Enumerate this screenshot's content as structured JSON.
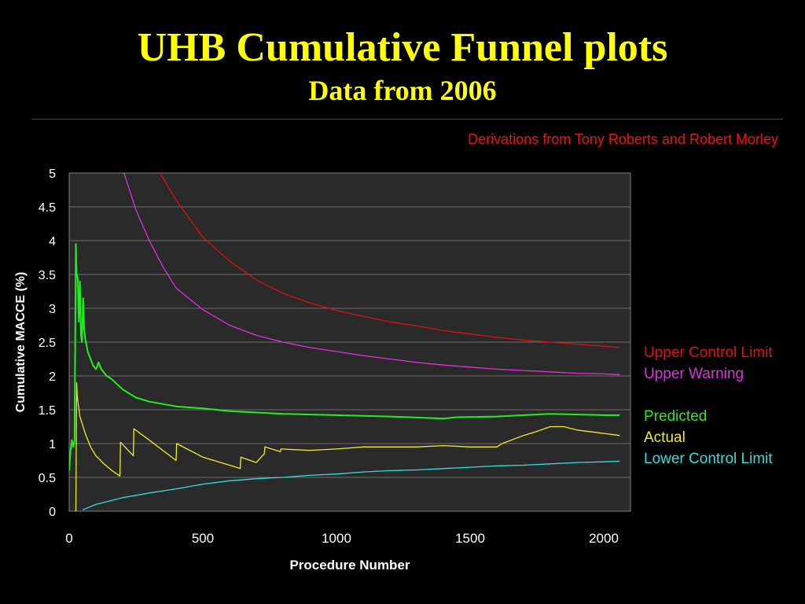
{
  "header": {
    "title": "UHB Cumulative Funnel plots",
    "subtitle": "Data from 2006",
    "credit": "Derivations from Tony Roberts and Robert Morley"
  },
  "colors": {
    "background": "#000000",
    "title": "#ffff00",
    "plot_bg": "#2a2a2a",
    "grid": "#6e6e6e"
  },
  "chart_data": {
    "type": "line",
    "xlabel": "Procedure Number",
    "ylabel": "Cumulative MACCE (%)",
    "xlim": [
      0,
      2100
    ],
    "ylim": [
      0,
      5
    ],
    "x_ticks": [
      0,
      500,
      1000,
      1500,
      2000
    ],
    "y_ticks": [
      0,
      0.5,
      1,
      1.5,
      2,
      2.5,
      3,
      3.5,
      4,
      4.5,
      5
    ],
    "grid": true,
    "legend_position": "right",
    "series": [
      {
        "name": "Upper Control Limit",
        "color": "#dd1111",
        "x": [
          340,
          400,
          500,
          600,
          700,
          800,
          900,
          1000,
          1100,
          1200,
          1300,
          1400,
          1500,
          1600,
          1700,
          1800,
          1900,
          2000,
          2060
        ],
        "y": [
          5.0,
          4.6,
          4.05,
          3.7,
          3.42,
          3.22,
          3.08,
          2.97,
          2.88,
          2.8,
          2.74,
          2.67,
          2.62,
          2.57,
          2.53,
          2.5,
          2.47,
          2.44,
          2.42
        ]
      },
      {
        "name": "Upper Warning",
        "color": "#dd33dd",
        "x": [
          205,
          250,
          300,
          350,
          400,
          500,
          600,
          700,
          800,
          900,
          1000,
          1100,
          1200,
          1300,
          1400,
          1500,
          1600,
          1700,
          1800,
          1900,
          2000,
          2060
        ],
        "y": [
          5.0,
          4.45,
          4.0,
          3.62,
          3.3,
          2.98,
          2.75,
          2.6,
          2.5,
          2.42,
          2.36,
          2.3,
          2.25,
          2.2,
          2.16,
          2.13,
          2.1,
          2.08,
          2.06,
          2.04,
          2.03,
          2.02
        ]
      },
      {
        "name": "Predicted",
        "color": "#22ee22",
        "x": [
          0,
          5,
          10,
          15,
          20,
          25,
          28,
          32,
          36,
          40,
          44,
          48,
          52,
          56,
          60,
          70,
          80,
          90,
          100,
          110,
          120,
          140,
          160,
          200,
          250,
          300,
          400,
          500,
          600,
          800,
          1000,
          1200,
          1400,
          1450,
          1600,
          1700,
          1800,
          2000,
          2060
        ],
        "y": [
          0.6,
          0.9,
          1.05,
          0.95,
          1.05,
          3.95,
          3.5,
          3.45,
          2.8,
          3.4,
          2.6,
          2.5,
          3.15,
          2.7,
          2.55,
          2.35,
          2.25,
          2.15,
          2.1,
          2.2,
          2.1,
          2.0,
          1.95,
          1.8,
          1.68,
          1.62,
          1.55,
          1.52,
          1.48,
          1.44,
          1.42,
          1.4,
          1.37,
          1.39,
          1.4,
          1.42,
          1.44,
          1.42,
          1.42
        ]
      },
      {
        "name": "Actual",
        "color": "#eeee22",
        "x": [
          25,
          28,
          30,
          40,
          60,
          80,
          100,
          130,
          160,
          190,
          192,
          240,
          242,
          300,
          400,
          402,
          500,
          600,
          640,
          642,
          700,
          730,
          732,
          790,
          792,
          900,
          1000,
          1100,
          1200,
          1300,
          1400,
          1500,
          1600,
          1620,
          1700,
          1750,
          1800,
          1850,
          1900,
          2000,
          2060
        ],
        "y": [
          0.0,
          1.9,
          1.7,
          1.4,
          1.15,
          0.95,
          0.82,
          0.7,
          0.6,
          0.52,
          1.02,
          0.82,
          1.22,
          1.05,
          0.75,
          1.0,
          0.8,
          0.68,
          0.63,
          0.8,
          0.72,
          0.85,
          0.95,
          0.88,
          0.92,
          0.9,
          0.92,
          0.95,
          0.95,
          0.95,
          0.97,
          0.95,
          0.95,
          1.0,
          1.12,
          1.18,
          1.25,
          1.25,
          1.2,
          1.15,
          1.12
        ]
      },
      {
        "name": "Lower Control Limit",
        "color": "#33dddd",
        "x": [
          50,
          100,
          200,
          300,
          400,
          500,
          600,
          700,
          800,
          900,
          1000,
          1100,
          1200,
          1300,
          1400,
          1500,
          1600,
          1700,
          1800,
          1900,
          2000,
          2060
        ],
        "y": [
          0.02,
          0.1,
          0.2,
          0.27,
          0.33,
          0.4,
          0.45,
          0.48,
          0.5,
          0.53,
          0.55,
          0.58,
          0.6,
          0.61,
          0.63,
          0.65,
          0.67,
          0.68,
          0.7,
          0.72,
          0.73,
          0.74
        ]
      }
    ]
  }
}
